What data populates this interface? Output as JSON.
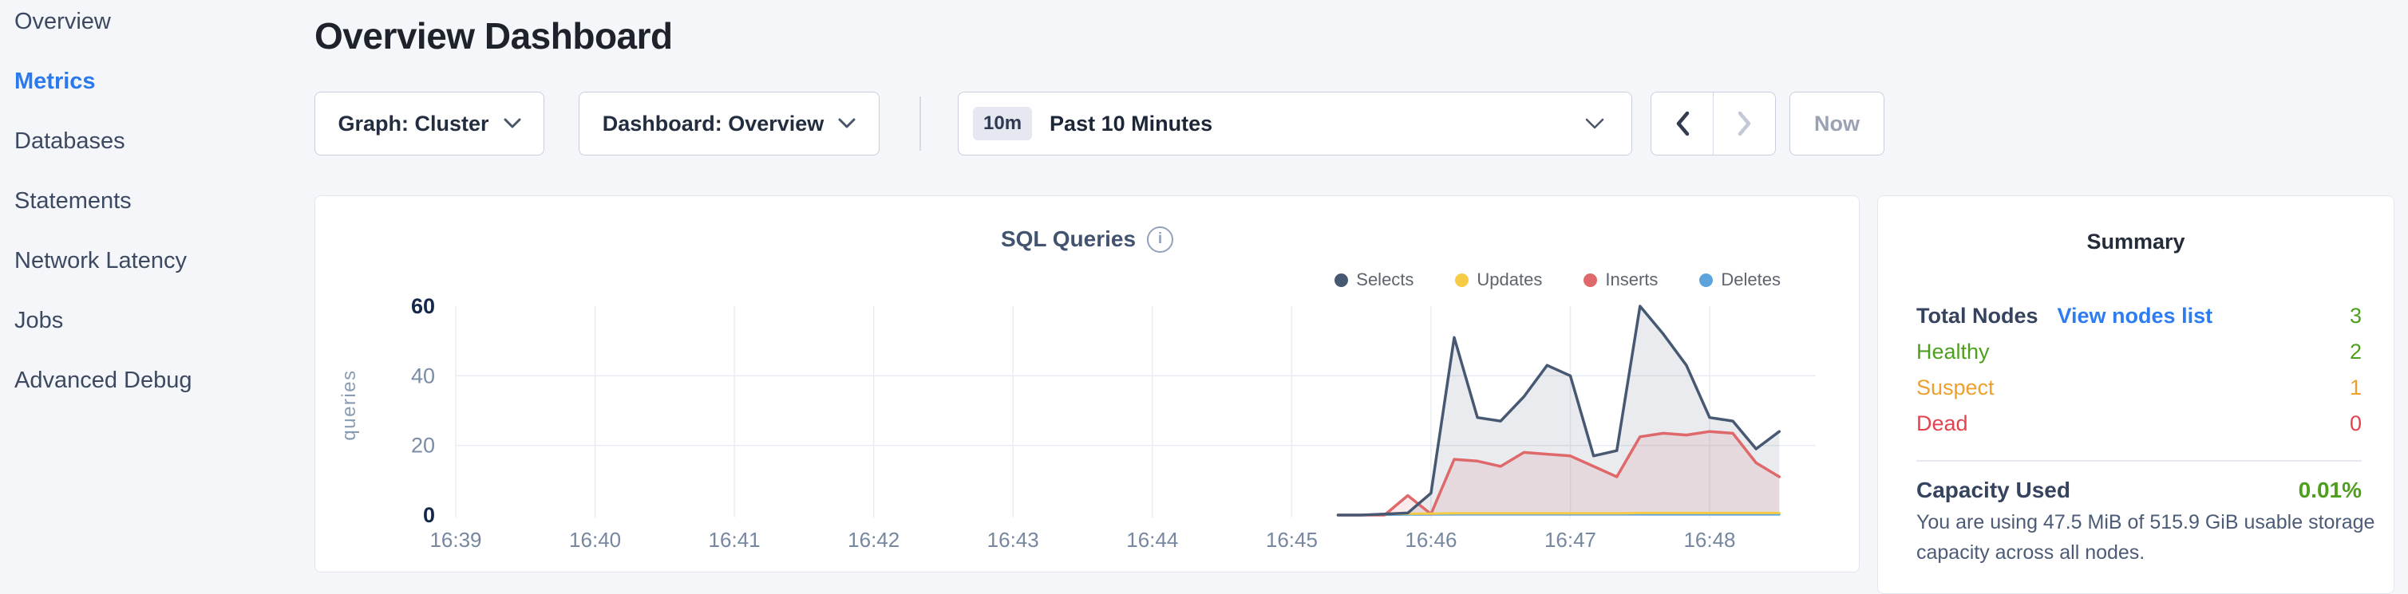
{
  "sidebar": {
    "items": [
      {
        "label": "Overview",
        "active": false
      },
      {
        "label": "Metrics",
        "active": true
      },
      {
        "label": "Databases",
        "active": false
      },
      {
        "label": "Statements",
        "active": false
      },
      {
        "label": "Network Latency",
        "active": false
      },
      {
        "label": "Jobs",
        "active": false
      },
      {
        "label": "Advanced Debug",
        "active": false
      }
    ]
  },
  "header": {
    "title": "Overview Dashboard"
  },
  "controls": {
    "graph_dropdown_label": "Graph: Cluster",
    "dashboard_dropdown_label": "Dashboard: Overview",
    "time_range": {
      "badge": "10m",
      "label": "Past 10 Minutes"
    },
    "now_label": "Now"
  },
  "chart": {
    "title": "SQL Queries",
    "ylabel": "queries",
    "yticks": [
      0,
      20,
      40,
      60
    ],
    "xticks": [
      "16:39",
      "16:40",
      "16:41",
      "16:42",
      "16:43",
      "16:44",
      "16:45",
      "16:46",
      "16:47",
      "16:48"
    ],
    "legend": [
      {
        "name": "Selects",
        "color": "#475872"
      },
      {
        "name": "Updates",
        "color": "#f6cb45"
      },
      {
        "name": "Inserts",
        "color": "#de686a"
      },
      {
        "name": "Deletes",
        "color": "#5ea4dc"
      }
    ]
  },
  "chart_data": {
    "type": "area",
    "title": "SQL Queries",
    "ylabel": "queries",
    "ylim": [
      0,
      60
    ],
    "x_range": [
      "16:39:00",
      "16:48:44"
    ],
    "grid": {
      "horizontal_lines_at": [
        20,
        40
      ],
      "vertical_line_every_minute": true
    },
    "legend_position": "top-right",
    "x": [
      "16:45:20",
      "16:45:30",
      "16:45:40",
      "16:45:50",
      "16:46:00",
      "16:46:10",
      "16:46:20",
      "16:46:30",
      "16:46:40",
      "16:46:50",
      "16:47:00",
      "16:47:10",
      "16:47:20",
      "16:47:30",
      "16:47:40",
      "16:47:50",
      "16:48:00",
      "16:48:10",
      "16:48:20",
      "16:48:30"
    ],
    "series": [
      {
        "name": "Selects",
        "color": "#475872",
        "fill": "rgba(71,88,114,0.12)",
        "values": [
          0,
          0,
          0.3,
          0.6,
          6.3,
          51,
          28,
          27,
          34,
          43,
          40,
          17,
          18.5,
          60,
          52,
          43,
          28,
          27,
          19,
          24
        ]
      },
      {
        "name": "Updates",
        "color": "#f6cb45",
        "fill": "rgba(246,203,69,0.15)",
        "values": [
          0,
          0,
          0.3,
          0.4,
          0.4,
          0.5,
          0.5,
          0.5,
          0.5,
          0.5,
          0.5,
          0.5,
          0.5,
          0.6,
          0.6,
          0.6,
          0.6,
          0.6,
          0.6,
          0.6
        ]
      },
      {
        "name": "Inserts",
        "color": "#de686a",
        "fill": "rgba(222,104,106,0.13)",
        "values": [
          0,
          0,
          0,
          5.6,
          0.3,
          16,
          15.5,
          14,
          18,
          17.5,
          17,
          14,
          11,
          22.5,
          23.5,
          23,
          24,
          23.5,
          15,
          11
        ]
      },
      {
        "name": "Deletes",
        "color": "#5ea4dc",
        "fill": "rgba(94,164,220,0.15)",
        "values": [
          0,
          0,
          0.1,
          0.15,
          0.15,
          0.2,
          0.2,
          0.2,
          0.2,
          0.2,
          0.2,
          0.2,
          0.2,
          0.2,
          0.2,
          0.2,
          0.2,
          0.2,
          0.2,
          0.2
        ]
      }
    ]
  },
  "summary": {
    "title": "Summary",
    "total_nodes": {
      "label": "Total Nodes",
      "link": "View nodes list",
      "value": "3",
      "color": "#4f9f1f"
    },
    "rows": [
      {
        "label": "Healthy",
        "value": "2",
        "color": "#4f9f1f"
      },
      {
        "label": "Suspect",
        "value": "1",
        "color": "#eda02d"
      },
      {
        "label": "Dead",
        "value": "0",
        "color": "#e2434e"
      }
    ],
    "capacity": {
      "label": "Capacity Used",
      "value": "0.01%",
      "value_color": "#4f9f1f",
      "description": "You are using 47.5 MiB of 515.9 GiB usable storage capacity across all nodes."
    }
  },
  "colors": {
    "nav_active": "#2b79ef",
    "link": "#2d7cf2",
    "page_bg": "#f4f6fa",
    "grid": "#e9edf3"
  }
}
